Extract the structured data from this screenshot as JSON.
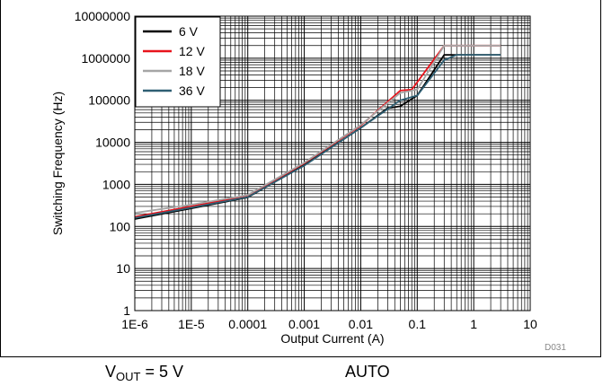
{
  "chart_data": {
    "type": "line",
    "xlabel": "Output Current (A)",
    "ylabel": "Switching Frequency (Hz)",
    "x_scale": "log",
    "y_scale": "log",
    "xlim": [
      1e-06,
      10
    ],
    "ylim": [
      1,
      10000000
    ],
    "grid": true,
    "legend_position": "top-left",
    "x_tick_labels": [
      "1E-6",
      "1E-5",
      "0.0001",
      "0.001",
      "0.01",
      "0.1",
      "1",
      "10"
    ],
    "y_tick_labels": [
      "1",
      "10",
      "100",
      "1000",
      "10000",
      "100000",
      "1000000",
      "10000000"
    ],
    "series": [
      {
        "name": "6 V",
        "color": "#000000",
        "points": [
          [
            1e-06,
            150
          ],
          [
            1e-05,
            270
          ],
          [
            0.0001,
            490
          ],
          [
            0.001,
            2900
          ],
          [
            0.01,
            22000
          ],
          [
            0.03,
            65000
          ],
          [
            0.05,
            72000
          ],
          [
            0.1,
            130000
          ],
          [
            0.3,
            1200000
          ],
          [
            0.5,
            1200000
          ],
          [
            3,
            1200000
          ]
        ]
      },
      {
        "name": "12 V",
        "color": "#e8141c",
        "points": [
          [
            1e-06,
            170
          ],
          [
            1e-05,
            300
          ],
          [
            0.0001,
            540
          ],
          [
            0.001,
            3200
          ],
          [
            0.01,
            25000
          ],
          [
            0.05,
            170000
          ],
          [
            0.08,
            180000
          ],
          [
            0.3,
            2000000
          ],
          [
            0.5,
            2000000
          ],
          [
            3,
            2000000
          ]
        ]
      },
      {
        "name": "18 V",
        "color": "#a6a6a6",
        "points": [
          [
            1e-06,
            210
          ],
          [
            1e-05,
            330
          ],
          [
            0.0001,
            560
          ],
          [
            0.001,
            3300
          ],
          [
            0.01,
            26000
          ],
          [
            0.05,
            150000
          ],
          [
            0.1,
            180000
          ],
          [
            0.3,
            2000000
          ],
          [
            0.5,
            2000000
          ],
          [
            3,
            2000000
          ]
        ]
      },
      {
        "name": "36 V",
        "color": "#2f5f73",
        "points": [
          [
            1e-06,
            160
          ],
          [
            1e-05,
            280
          ],
          [
            0.0001,
            500
          ],
          [
            0.001,
            2800
          ],
          [
            0.01,
            22000
          ],
          [
            0.05,
            100000
          ],
          [
            0.1,
            130000
          ],
          [
            0.3,
            900000
          ],
          [
            0.5,
            1200000
          ],
          [
            3,
            1200000
          ]
        ]
      }
    ]
  },
  "figure_code": "D031",
  "captions": {
    "vout_prefix": "V",
    "vout_sub": "OUT",
    "vout_rest": " = 5 V",
    "mode": "AUTO"
  }
}
